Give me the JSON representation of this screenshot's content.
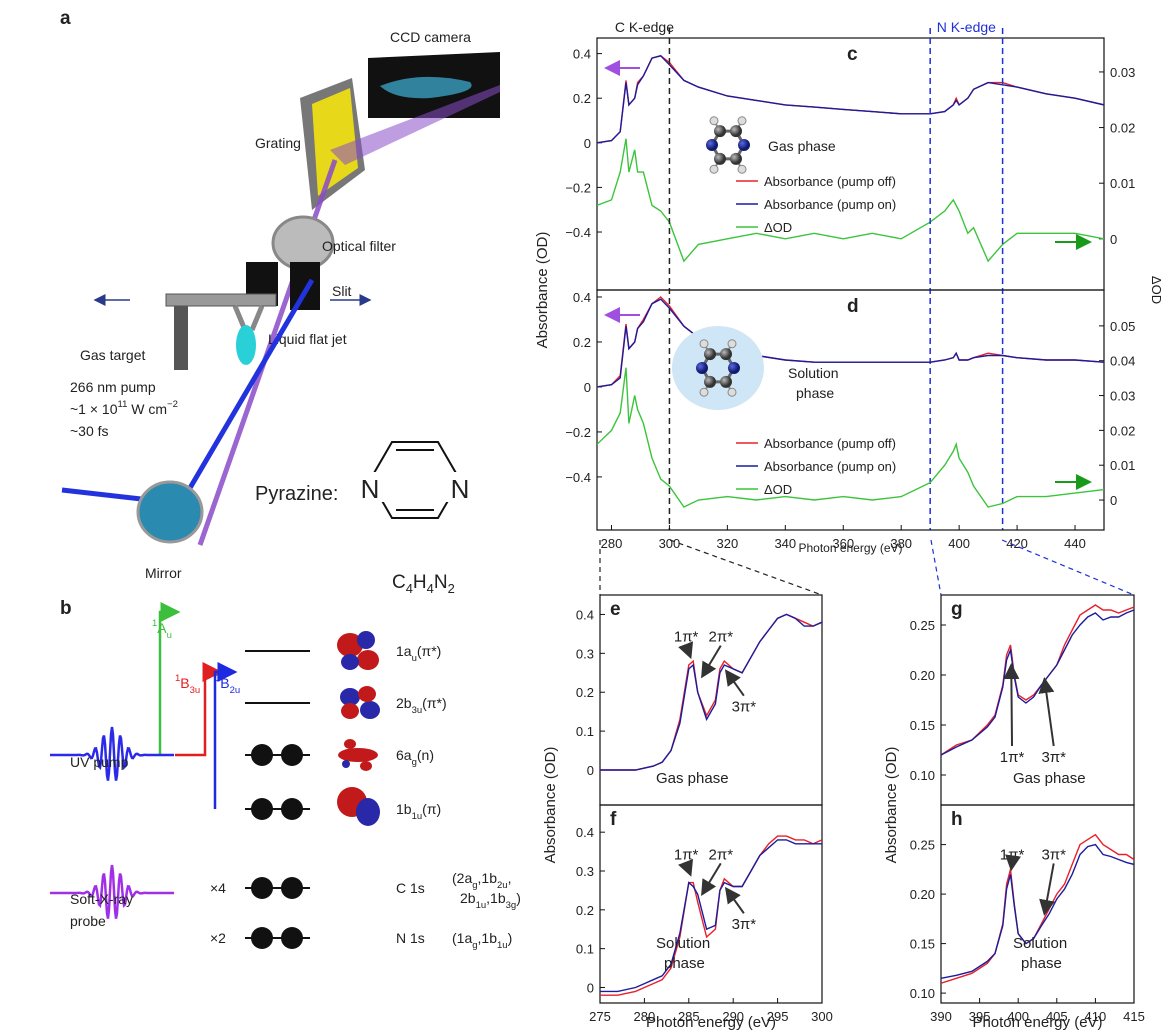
{
  "panels": {
    "a": "a",
    "b": "b"
  },
  "setup": {
    "camera": "CCD camera",
    "grating": "Grating",
    "filter": "Optical filter",
    "slit": "Slit",
    "gas_target": "Gas target",
    "jet": "Liquid flat jet",
    "pump_wavelength": "266 nm pump",
    "pump_intensity": [
      "~1 × 10",
      "11",
      " W cm",
      "−2"
    ],
    "pump_duration": "~30 fs",
    "mirror": "Mirror",
    "molecule": "Pyrazine:",
    "atoms": [
      "N",
      "N"
    ],
    "formula": [
      "C",
      "4",
      "H",
      "4",
      "N",
      "2"
    ]
  },
  "scheme": {
    "states": [
      [
        "1",
        "A",
        "u"
      ],
      [
        "1",
        "B",
        "3u"
      ],
      [
        "1",
        "B",
        "2u"
      ]
    ],
    "orbitals": [
      [
        "1a",
        "u",
        "(π*)"
      ],
      [
        "2b",
        "3u",
        "(π*)"
      ],
      [
        "6a",
        "g",
        "(n)"
      ],
      [
        "1b",
        "1u",
        "(π)"
      ]
    ],
    "core": [
      {
        "multiplicity": "×4",
        "name": "C 1s",
        "orbitals": [
          [
            "(2a",
            "g",
            ",1b",
            "2u",
            ","
          ],
          [
            "2b",
            "1u",
            ",1b",
            "3g",
            ")"
          ]
        ]
      },
      {
        "multiplicity": "×2",
        "name": "N 1s",
        "orbitals": [
          [
            "(1a",
            "g",
            ",1b",
            "1u",
            ")"
          ]
        ]
      }
    ],
    "pump": "UV pump",
    "probe": [
      "Soft-X-ray",
      "probe"
    ]
  },
  "chart_data": [
    {
      "type": "line",
      "label": "c",
      "xlim": [
        275,
        450
      ],
      "ylim": [
        -0.66,
        0.47
      ],
      "yticks": [
        {
          "value": -0.4,
          "label": "−0.4"
        },
        {
          "value": -0.2,
          "label": "−0.2"
        },
        0,
        0.2,
        0.4
      ],
      "y2lim": [
        -0.0092,
        0.0361
      ],
      "y2ticks": [
        0,
        0.01,
        0.02,
        0.03
      ],
      "ylabel": "Absorbance (OD)",
      "y2label": "ΔOD",
      "edge_labels": [
        "C K-edge",
        "N K-edge"
      ],
      "markers": [
        {
          "value": 300,
          "color": "#222222"
        },
        {
          "value": 390,
          "color": "#2030d8"
        },
        {
          "value": 415,
          "color": "#2030d8"
        }
      ],
      "phase_label": [
        "Gas phase"
      ],
      "x": [
        275,
        280,
        283,
        285,
        286,
        288,
        289,
        291,
        294,
        297,
        300,
        305,
        310,
        320,
        330,
        340,
        350,
        360,
        370,
        380,
        390,
        395,
        398,
        399,
        400,
        403,
        405,
        410,
        415,
        420,
        430,
        440,
        450
      ],
      "series": [
        {
          "name": "Absorbance (pump off)",
          "color": "#e8202a",
          "values": [
            0,
            0.01,
            0.05,
            0.28,
            0.17,
            0.2,
            0.27,
            0.3,
            0.38,
            0.39,
            0.36,
            0.28,
            0.25,
            0.21,
            0.19,
            0.17,
            0.16,
            0.15,
            0.14,
            0.13,
            0.13,
            0.14,
            0.17,
            0.2,
            0.17,
            0.2,
            0.24,
            0.27,
            0.27,
            0.25,
            0.22,
            0.2,
            0.17
          ]
        },
        {
          "name": "Absorbance (pump on)",
          "color": "#1c1c9c",
          "values": [
            0,
            0.01,
            0.05,
            0.27,
            0.17,
            0.2,
            0.26,
            0.3,
            0.38,
            0.39,
            0.35,
            0.28,
            0.25,
            0.21,
            0.19,
            0.17,
            0.16,
            0.15,
            0.14,
            0.13,
            0.13,
            0.14,
            0.17,
            0.19,
            0.17,
            0.2,
            0.24,
            0.27,
            0.26,
            0.25,
            0.22,
            0.2,
            0.17
          ]
        },
        {
          "name": "ΔOD",
          "color": "#3cc43c",
          "axis": "y2",
          "values": [
            0.006,
            0.007,
            0.012,
            0.018,
            0.012,
            0.016,
            0.012,
            0.012,
            0.006,
            0.005,
            0.003,
            -0.004,
            -0.001,
            0,
            0.001,
            0,
            0.001,
            0,
            0.001,
            0,
            0.003,
            0.005,
            0.007,
            0.006,
            0.005,
            0.001,
            0.002,
            -0.004,
            -0.001,
            0.001,
            0.001,
            0.001,
            0
          ]
        }
      ]
    },
    {
      "type": "line",
      "label": "d",
      "xlim": [
        275,
        450
      ],
      "ylim": [
        -0.636,
        0.431
      ],
      "yticks": [
        {
          "value": -0.4,
          "label": "−0.4"
        },
        {
          "value": -0.2,
          "label": "−0.2"
        },
        0,
        0.2,
        0.4
      ],
      "y2lim": [
        -0.0086,
        0.0603
      ],
      "y2ticks": [
        0,
        0.01,
        0.02,
        0.03,
        0.04,
        0.05
      ],
      "xticks": [
        280,
        300,
        320,
        340,
        360,
        380,
        400,
        420,
        440
      ],
      "xlabel": "Photon energy (eV)",
      "phase_label": [
        "Solution",
        "phase"
      ],
      "x": [
        275,
        280,
        283,
        285,
        286,
        288,
        289,
        291,
        294,
        297,
        300,
        305,
        310,
        320,
        330,
        340,
        350,
        360,
        370,
        380,
        390,
        395,
        398,
        399,
        400,
        403,
        405,
        410,
        415,
        420,
        430,
        440,
        450
      ],
      "series": [
        {
          "name": "Absorbance (pump off)",
          "color": "#e8202a",
          "values": [
            0,
            0.01,
            0.05,
            0.28,
            0.17,
            0.2,
            0.26,
            0.3,
            0.37,
            0.4,
            0.36,
            0.27,
            0.22,
            0.17,
            0.14,
            0.12,
            0.11,
            0.11,
            0.11,
            0.11,
            0.11,
            0.12,
            0.13,
            0.15,
            0.12,
            0.12,
            0.13,
            0.15,
            0.14,
            0.13,
            0.12,
            0.12,
            0.11
          ]
        },
        {
          "name": "Absorbance (pump on)",
          "color": "#1c1c9c",
          "values": [
            0,
            0.01,
            0.04,
            0.27,
            0.17,
            0.2,
            0.26,
            0.29,
            0.37,
            0.39,
            0.35,
            0.27,
            0.22,
            0.17,
            0.14,
            0.12,
            0.11,
            0.11,
            0.11,
            0.11,
            0.11,
            0.12,
            0.13,
            0.15,
            0.12,
            0.12,
            0.13,
            0.14,
            0.14,
            0.13,
            0.12,
            0.12,
            0.11
          ]
        },
        {
          "name": "ΔOD",
          "color": "#3cc43c",
          "axis": "y2",
          "values": [
            0.016,
            0.02,
            0.025,
            0.038,
            0.022,
            0.03,
            0.026,
            0.022,
            0.012,
            0.006,
            0.004,
            -0.002,
            0,
            0.001,
            0,
            0.001,
            0,
            0.001,
            0,
            0.001,
            0.005,
            0.01,
            0.014,
            0.016,
            0.012,
            0.008,
            0.004,
            -0.002,
            -0.001,
            0.001,
            0.001,
            0.002,
            0.003
          ]
        }
      ]
    },
    {
      "type": "line",
      "label": "e",
      "xlim": [
        275,
        300
      ],
      "ylim": [
        -0.09,
        0.45
      ],
      "yticks": [
        0,
        0.1,
        0.2,
        0.3,
        0.4
      ],
      "ylabel": "Absorbance (OD)",
      "annotations": [
        "1π*",
        "2π*",
        "3π*"
      ],
      "phase_label": [
        "Gas phase"
      ],
      "x": [
        275,
        277,
        279,
        280,
        281,
        282,
        283,
        284,
        285,
        285.5,
        286,
        287,
        288,
        288.5,
        289,
        290,
        291,
        292,
        293,
        294,
        295,
        296,
        297,
        298,
        299,
        300
      ],
      "series": [
        {
          "color": "#e8202a",
          "values": [
            0,
            0,
            0,
            0.005,
            0.01,
            0.02,
            0.05,
            0.13,
            0.27,
            0.28,
            0.2,
            0.14,
            0.18,
            0.26,
            0.28,
            0.26,
            0.25,
            0.29,
            0.33,
            0.36,
            0.39,
            0.4,
            0.39,
            0.38,
            0.37,
            0.38
          ]
        },
        {
          "color": "#1c1c9c",
          "values": [
            0,
            0,
            0,
            0.005,
            0.01,
            0.02,
            0.05,
            0.12,
            0.26,
            0.27,
            0.2,
            0.13,
            0.17,
            0.25,
            0.27,
            0.26,
            0.25,
            0.29,
            0.33,
            0.36,
            0.39,
            0.4,
            0.39,
            0.37,
            0.37,
            0.38
          ]
        }
      ]
    },
    {
      "type": "line",
      "label": "f",
      "xlim": [
        275,
        300
      ],
      "ylim": [
        -0.04,
        0.47
      ],
      "yticks": [
        0,
        0.1,
        0.2,
        0.3,
        0.4
      ],
      "xticks": [
        275,
        280,
        285,
        290,
        295,
        300
      ],
      "xlabel": "Photon energy (eV)",
      "annotations": [
        "1π*",
        "2π*",
        "3π*"
      ],
      "phase_label": [
        "Solution",
        "phase"
      ],
      "x": [
        275,
        277,
        279,
        280,
        281,
        282,
        283,
        284,
        285,
        285.5,
        286,
        287,
        288,
        288.5,
        289,
        290,
        291,
        292,
        293,
        294,
        295,
        296,
        297,
        298,
        299,
        300
      ],
      "series": [
        {
          "color": "#e8202a",
          "values": [
            -0.02,
            -0.02,
            -0.01,
            0,
            0.01,
            0.02,
            0.05,
            0.13,
            0.27,
            0.27,
            0.22,
            0.13,
            0.15,
            0.25,
            0.28,
            0.26,
            0.26,
            0.3,
            0.34,
            0.37,
            0.39,
            0.39,
            0.38,
            0.38,
            0.37,
            0.38
          ]
        },
        {
          "color": "#1c1c9c",
          "values": [
            -0.01,
            -0.01,
            0,
            0.01,
            0.02,
            0.03,
            0.06,
            0.14,
            0.27,
            0.26,
            0.24,
            0.15,
            0.16,
            0.25,
            0.27,
            0.26,
            0.26,
            0.3,
            0.34,
            0.36,
            0.38,
            0.38,
            0.37,
            0.37,
            0.37,
            0.37
          ]
        }
      ]
    },
    {
      "type": "line",
      "label": "g",
      "xlim": [
        390,
        415
      ],
      "ylim": [
        0.07,
        0.28
      ],
      "yticks": [
        {
          "value": 0.1,
          "label": "0.10"
        },
        0.15,
        {
          "value": 0.2,
          "label": "0.20"
        },
        0.25
      ],
      "ylabel": "Absorbance (OD)",
      "annotations": [
        "1π*",
        "3π*"
      ],
      "phase_label": [
        "Gas phase"
      ],
      "x": [
        390,
        392,
        394,
        396,
        397,
        398,
        398.5,
        399,
        399.5,
        400,
        401,
        402,
        403,
        404,
        405,
        406,
        407,
        408,
        409,
        410,
        411,
        412,
        413,
        414,
        415
      ],
      "series": [
        {
          "color": "#e8202a",
          "values": [
            0.12,
            0.13,
            0.135,
            0.15,
            0.16,
            0.19,
            0.22,
            0.23,
            0.2,
            0.18,
            0.175,
            0.18,
            0.19,
            0.2,
            0.21,
            0.23,
            0.245,
            0.26,
            0.265,
            0.27,
            0.265,
            0.265,
            0.262,
            0.265,
            0.268
          ]
        },
        {
          "color": "#1c1c9c",
          "values": [
            0.12,
            0.128,
            0.135,
            0.148,
            0.158,
            0.188,
            0.215,
            0.225,
            0.198,
            0.178,
            0.172,
            0.178,
            0.19,
            0.2,
            0.21,
            0.225,
            0.24,
            0.25,
            0.258,
            0.262,
            0.255,
            0.258,
            0.258,
            0.262,
            0.265
          ]
        }
      ]
    },
    {
      "type": "line",
      "label": "h",
      "xlim": [
        390,
        415
      ],
      "ylim": [
        0.09,
        0.29
      ],
      "yticks": [
        {
          "value": 0.1,
          "label": "0.10"
        },
        0.15,
        {
          "value": 0.2,
          "label": "0.20"
        },
        0.25
      ],
      "xticks": [
        390,
        395,
        400,
        405,
        410,
        415
      ],
      "xlabel": "Photon energy (eV)",
      "annotations": [
        "1π*",
        "3π*"
      ],
      "phase_label": [
        "Solution",
        "phase"
      ],
      "x": [
        390,
        392,
        394,
        396,
        397,
        398,
        398.5,
        399,
        399.5,
        400,
        401,
        402,
        403,
        404,
        405,
        406,
        407,
        408,
        409,
        410,
        411,
        412,
        413,
        414,
        415
      ],
      "series": [
        {
          "color": "#e8202a",
          "values": [
            0.11,
            0.115,
            0.12,
            0.13,
            0.14,
            0.17,
            0.21,
            0.225,
            0.19,
            0.16,
            0.15,
            0.155,
            0.17,
            0.185,
            0.2,
            0.21,
            0.23,
            0.25,
            0.255,
            0.26,
            0.25,
            0.245,
            0.24,
            0.24,
            0.235
          ]
        },
        {
          "color": "#1c1c9c",
          "values": [
            0.115,
            0.118,
            0.122,
            0.132,
            0.14,
            0.168,
            0.205,
            0.22,
            0.188,
            0.16,
            0.15,
            0.155,
            0.168,
            0.18,
            0.195,
            0.205,
            0.22,
            0.24,
            0.248,
            0.25,
            0.24,
            0.238,
            0.235,
            0.232,
            0.23
          ]
        }
      ]
    }
  ]
}
